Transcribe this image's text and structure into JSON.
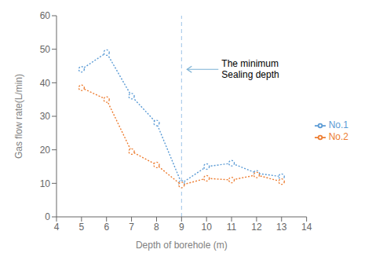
{
  "chart_data": {
    "type": "line",
    "x": [
      5,
      6,
      7,
      8,
      9,
      10,
      11,
      12,
      13
    ],
    "series": [
      {
        "name": "No.1",
        "color": "#5b9bd5",
        "values": [
          44,
          49,
          36,
          28,
          10,
          15,
          16,
          13,
          12
        ],
        "marker": "circle",
        "line_style": "dotted"
      },
      {
        "name": "No.2",
        "color": "#ed7d31",
        "values": [
          38.5,
          35,
          19.5,
          15.5,
          9.5,
          11.5,
          11,
          12.5,
          10.5
        ],
        "marker": "circle",
        "line_style": "dotted"
      }
    ],
    "xlim": [
      4,
      14
    ],
    "ylim": [
      0,
      60
    ],
    "xticks": [
      4,
      5,
      6,
      7,
      8,
      9,
      10,
      11,
      12,
      13,
      14
    ],
    "yticks": [
      0,
      10,
      20,
      30,
      40,
      50,
      60
    ],
    "xlabel": "Depth of borehole (m)",
    "ylabel": "Gas flow rate(L/min)",
    "vline": {
      "x": 9,
      "color": "#5b9bd5"
    },
    "annotation": {
      "text": "The minimum\nSealing depth",
      "x": 10.6,
      "y": 44,
      "arrow_color": "#7ab0d4"
    },
    "legend": "right",
    "grid": false
  }
}
